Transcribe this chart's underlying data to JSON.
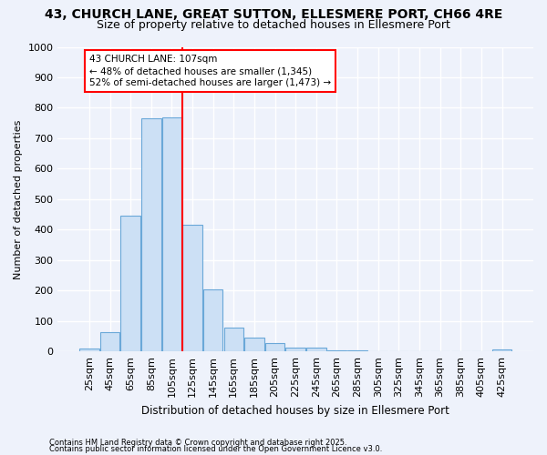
{
  "title1": "43, CHURCH LANE, GREAT SUTTON, ELLESMERE PORT, CH66 4RE",
  "title2": "Size of property relative to detached houses in Ellesmere Port",
  "xlabel": "Distribution of detached houses by size in Ellesmere Port",
  "ylabel": "Number of detached properties",
  "bins": [
    "25sqm",
    "45sqm",
    "65sqm",
    "85sqm",
    "105sqm",
    "125sqm",
    "145sqm",
    "165sqm",
    "185sqm",
    "205sqm",
    "225sqm",
    "245sqm",
    "265sqm",
    "285sqm",
    "305sqm",
    "325sqm",
    "345sqm",
    "365sqm",
    "385sqm",
    "405sqm",
    "425sqm"
  ],
  "values": [
    10,
    65,
    445,
    765,
    770,
    415,
    205,
    80,
    45,
    28,
    12,
    12,
    5,
    5,
    0,
    0,
    0,
    0,
    0,
    0,
    8
  ],
  "bar_color": "#cce0f5",
  "bar_edge_color": "#6aa8d8",
  "red_line_x": 4.5,
  "annotation_line1": "43 CHURCH LANE: 107sqm",
  "annotation_line2": "← 48% of detached houses are smaller (1,345)",
  "annotation_line3": "52% of semi-detached houses are larger (1,473) →",
  "annotation_box_color": "white",
  "annotation_box_edge": "red",
  "footer1": "Contains HM Land Registry data © Crown copyright and database right 2025.",
  "footer2": "Contains public sector information licensed under the Open Government Licence v3.0.",
  "ylim": [
    0,
    1000
  ],
  "yticks": [
    0,
    100,
    200,
    300,
    400,
    500,
    600,
    700,
    800,
    900,
    1000
  ],
  "bg_color": "#eef2fb",
  "grid_color": "#ffffff",
  "title_fontsize": 10,
  "subtitle_fontsize": 9,
  "axis_fontsize": 8,
  "tick_fontsize": 8
}
